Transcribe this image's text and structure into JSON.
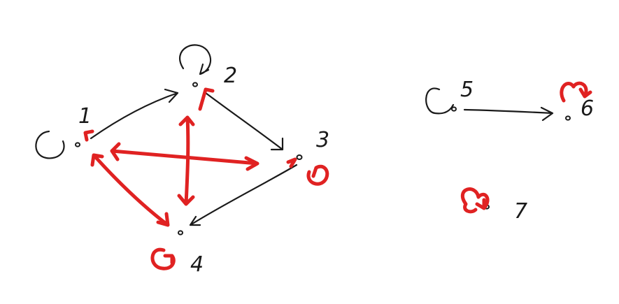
{
  "diagram": {
    "type": "directed-graph-sketch",
    "nodes": [
      {
        "id": "1",
        "label": "1"
      },
      {
        "id": "2",
        "label": "2"
      },
      {
        "id": "3",
        "label": "3"
      },
      {
        "id": "4",
        "label": "4"
      },
      {
        "id": "5",
        "label": "5"
      },
      {
        "id": "6",
        "label": "6"
      },
      {
        "id": "7",
        "label": "7"
      }
    ],
    "edges_black": [
      {
        "from": "1",
        "to": "2"
      },
      {
        "from": "2",
        "to": "3"
      },
      {
        "from": "3",
        "to": "4"
      },
      {
        "from": "5",
        "to": "6"
      }
    ],
    "edges_red": [
      {
        "from": "2",
        "to": "1"
      },
      {
        "from": "1",
        "to": "3",
        "bidirectional": true
      },
      {
        "from": "2",
        "to": "4",
        "bidirectional": true
      },
      {
        "from": "1",
        "to": "4",
        "bidirectional": true
      }
    ],
    "loops_black": [
      "1",
      "2",
      "5"
    ],
    "loops_red": [
      "3",
      "4",
      "6",
      "7"
    ],
    "colors": {
      "ink": "#1a1a1a",
      "highlight": "#e02222"
    }
  }
}
